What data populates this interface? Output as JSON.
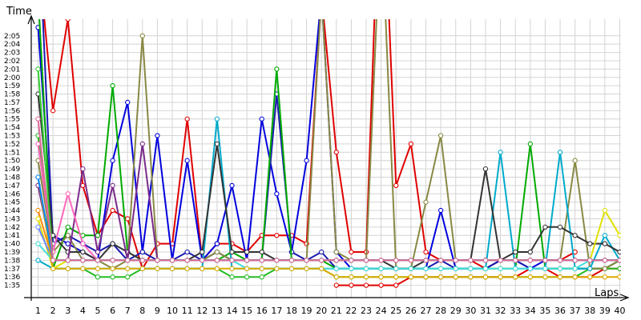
{
  "chart_data": {
    "type": "line",
    "ylabel": "Time",
    "xlabel": "Laps",
    "x": [
      1,
      2,
      3,
      4,
      5,
      6,
      7,
      8,
      9,
      10,
      11,
      12,
      13,
      14,
      15,
      16,
      17,
      18,
      19,
      20,
      21,
      22,
      23,
      24,
      25,
      26,
      27,
      28,
      29,
      30,
      31,
      32,
      33,
      34,
      35,
      36,
      37,
      38,
      39,
      40
    ],
    "x_tick_labels": [
      "1",
      "2",
      "3",
      "4",
      "5",
      "6",
      "7",
      "8",
      "9",
      "10",
      "11",
      "12",
      "13",
      "14",
      "15",
      "16",
      "17",
      "18",
      "19",
      "20",
      "21",
      "22",
      "23",
      "24",
      "25",
      "26",
      "27",
      "28",
      "29",
      "30",
      "31",
      "32",
      "33",
      "34",
      "35",
      "36",
      "37",
      "38",
      "39",
      "40"
    ],
    "y_unit": "seconds (tick labels shown as m:ss)",
    "ylim": [
      94,
      127
    ],
    "y_tick_labels": [
      "1:35",
      "1:36",
      "1:37",
      "1:38",
      "1:39",
      "1:40",
      "1:41",
      "1:42",
      "1:43",
      "1:44",
      "1:45",
      "1:46",
      "1:47",
      "1:48",
      "1:49",
      "1:50",
      "1:51",
      "1:52",
      "1:53",
      "1:54",
      "1:55",
      "1:56",
      "1:57",
      "1:58",
      "1:59",
      "2:00",
      "2:01",
      "2:02",
      "2:03",
      "2:04",
      "2:05"
    ],
    "grid": true,
    "legend": "none",
    "series": [
      {
        "color": "#e00000",
        "values": [
          135,
          116,
          127,
          107,
          101,
          104,
          103,
          97,
          100,
          100,
          115,
          98,
          100,
          100,
          99,
          101,
          101,
          101,
          100,
          130,
          111,
          99,
          99,
          150,
          107,
          112,
          99,
          98,
          98,
          98,
          97,
          98,
          98,
          98,
          98,
          98,
          99,
          null,
          null,
          null
        ]
      },
      {
        "color": "#e00000",
        "values": [
          null,
          null,
          null,
          null,
          null,
          null,
          null,
          null,
          null,
          null,
          null,
          null,
          null,
          null,
          null,
          null,
          null,
          null,
          null,
          null,
          95,
          95,
          95,
          95,
          95,
          96,
          96,
          96,
          96,
          96,
          96,
          96,
          96,
          97,
          97,
          96,
          96,
          96,
          97,
          97
        ]
      },
      {
        "color": "#0000dd",
        "values": [
          126,
          101,
          100,
          99,
          98,
          110,
          117,
          99,
          113,
          98,
          110,
          98,
          100,
          107,
          98,
          115,
          106,
          99,
          110,
          130,
          99,
          97,
          97,
          97,
          97,
          97,
          97,
          104,
          97,
          97,
          97,
          98,
          98,
          97,
          98,
          98,
          98,
          98,
          98,
          98
        ]
      },
      {
        "color": "#1a1ab0",
        "values": [
          140,
          100,
          101,
          100,
          99,
          100,
          98,
          99,
          98,
          98,
          99,
          98,
          99,
          98,
          98,
          98,
          118,
          99,
          98,
          99,
          97,
          97,
          97,
          97,
          97,
          97,
          97,
          98,
          97,
          97,
          97,
          98,
          98,
          97,
          97,
          97,
          97,
          97,
          97,
          98
        ]
      },
      {
        "color": "#00aa00",
        "values": [
          130,
          97,
          102,
          101,
          101,
          119,
          99,
          98,
          98,
          98,
          98,
          98,
          98,
          99,
          98,
          98,
          121,
          98,
          98,
          98,
          97,
          97,
          97,
          97,
          97,
          97,
          97,
          97,
          97,
          97,
          97,
          97,
          97,
          112,
          97,
          97,
          97,
          97,
          97,
          98
        ]
      },
      {
        "color": "#22bb22",
        "values": [
          113,
          97,
          97,
          97,
          96,
          96,
          96,
          97,
          97,
          97,
          97,
          97,
          97,
          96,
          96,
          96,
          97,
          97,
          97,
          97,
          96,
          96,
          96,
          96,
          96,
          96,
          96,
          96,
          96,
          96,
          96,
          96,
          96,
          96,
          96,
          96,
          96,
          97,
          97,
          97
        ]
      },
      {
        "color": "#888844",
        "values": [
          110,
          99,
          101,
          98,
          98,
          97,
          98,
          125,
          98,
          98,
          98,
          98,
          99,
          98,
          98,
          98,
          98,
          98,
          98,
          130,
          99,
          98,
          98,
          140,
          97,
          97,
          105,
          113,
          98,
          98,
          98,
          98,
          98,
          98,
          98,
          98,
          110,
          97,
          97,
          98
        ]
      },
      {
        "color": "#00aacc",
        "values": [
          98,
          97,
          97,
          97,
          97,
          97,
          97,
          97,
          97,
          97,
          97,
          97,
          115,
          97,
          97,
          97,
          97,
          97,
          97,
          97,
          97,
          97,
          97,
          97,
          97,
          97,
          97,
          97,
          97,
          97,
          97,
          111,
          97,
          97,
          97,
          111,
          97,
          97,
          101,
          98
        ]
      },
      {
        "color": "#333333",
        "values": [
          118,
          101,
          99,
          99,
          98,
          100,
          99,
          98,
          98,
          98,
          98,
          99,
          112,
          99,
          99,
          99,
          98,
          98,
          98,
          98,
          98,
          98,
          98,
          98,
          97,
          97,
          98,
          98,
          98,
          98,
          109,
          98,
          99,
          99,
          102,
          102,
          101,
          100,
          100,
          99
        ]
      },
      {
        "color": "#7a2a8a",
        "values": [
          107,
          98,
          98,
          109,
          99,
          107,
          98,
          112,
          98,
          98,
          98,
          98,
          98,
          98,
          98,
          98,
          98,
          98,
          98,
          98,
          98,
          98,
          98,
          98,
          98,
          98,
          98,
          98,
          98,
          98,
          98,
          98,
          98,
          98,
          98,
          98,
          98,
          98,
          98,
          98
        ]
      },
      {
        "color": "#ff8800",
        "values": [
          104,
          98,
          98,
          98,
          98,
          98,
          98,
          98,
          98,
          98,
          98,
          98,
          98,
          98,
          98,
          98,
          98,
          98,
          98,
          98,
          98,
          98,
          98,
          98,
          98,
          98,
          98,
          98,
          98,
          98,
          98,
          98,
          98,
          98,
          98,
          98,
          98,
          98,
          98,
          98
        ]
      },
      {
        "color": "#e0e000",
        "values": [
          103,
          97,
          98,
          98,
          98,
          98,
          98,
          98,
          98,
          98,
          98,
          98,
          98,
          98,
          98,
          98,
          98,
          98,
          98,
          98,
          98,
          98,
          98,
          98,
          98,
          98,
          98,
          98,
          98,
          98,
          98,
          98,
          98,
          98,
          98,
          98,
          98,
          98,
          104,
          101
        ]
      },
      {
        "color": "#ff66bb",
        "values": [
          112,
          99,
          106,
          100,
          98,
          98,
          98,
          98,
          98,
          98,
          98,
          98,
          98,
          98,
          98,
          98,
          98,
          98,
          98,
          98,
          98,
          98,
          98,
          98,
          98,
          98,
          98,
          98,
          98,
          98,
          98,
          98,
          98,
          98,
          98,
          98,
          98,
          98,
          98,
          98
        ]
      },
      {
        "color": "#44dddd",
        "values": [
          100,
          98,
          98,
          98,
          98,
          98,
          98,
          98,
          98,
          98,
          98,
          98,
          98,
          98,
          97,
          97,
          97,
          97,
          97,
          97,
          97,
          97,
          97,
          97,
          97,
          97,
          97,
          97,
          97,
          97,
          97,
          97,
          97,
          97,
          97,
          97,
          97,
          98,
          98,
          98
        ]
      },
      {
        "color": "#6688ff",
        "values": [
          102,
          98,
          98,
          98,
          98,
          98,
          98,
          98,
          98,
          98,
          98,
          98,
          98,
          98,
          98,
          98,
          98,
          98,
          98,
          98,
          98,
          98,
          98,
          98,
          98,
          98,
          98,
          98,
          98,
          98,
          98,
          98,
          98,
          98,
          98,
          98,
          98,
          98,
          98,
          98
        ]
      },
      {
        "color": "#ddaa00",
        "values": [
          108,
          97,
          97,
          97,
          97,
          97,
          97,
          97,
          97,
          97,
          97,
          97,
          97,
          97,
          97,
          97,
          97,
          97,
          97,
          97,
          96,
          96,
          96,
          96,
          96,
          96,
          96,
          96,
          96,
          96,
          96,
          96,
          96,
          96,
          96,
          96,
          96,
          96,
          96,
          96
        ]
      },
      {
        "color": "#0088ff",
        "values": [
          108,
          98,
          98,
          98,
          98,
          98,
          98,
          98,
          98,
          98,
          98,
          98,
          98,
          98,
          98,
          98,
          98,
          98,
          98,
          98,
          98,
          98,
          98,
          98,
          98,
          98,
          98,
          98,
          98,
          98,
          98,
          98,
          98,
          98,
          98,
          98,
          98,
          98,
          98,
          98
        ]
      },
      {
        "color": "#33cc33",
        "values": [
          121,
          98,
          98,
          98,
          98,
          98,
          98,
          98,
          98,
          98,
          98,
          98,
          98,
          98,
          98,
          98,
          98,
          98,
          98,
          98,
          98,
          98,
          98,
          98,
          98,
          98,
          98,
          98,
          98,
          98,
          98,
          98,
          98,
          98,
          98,
          98,
          98,
          98,
          98,
          98
        ]
      },
      {
        "color": "#dd6699",
        "values": [
          115,
          98,
          98,
          98,
          98,
          98,
          98,
          98,
          98,
          98,
          98,
          98,
          98,
          98,
          98,
          98,
          98,
          98,
          98,
          98,
          98,
          98,
          98,
          98,
          98,
          98,
          98,
          98,
          98,
          98,
          98,
          98,
          98,
          98,
          98,
          98,
          98,
          98,
          98,
          98
        ]
      }
    ]
  }
}
